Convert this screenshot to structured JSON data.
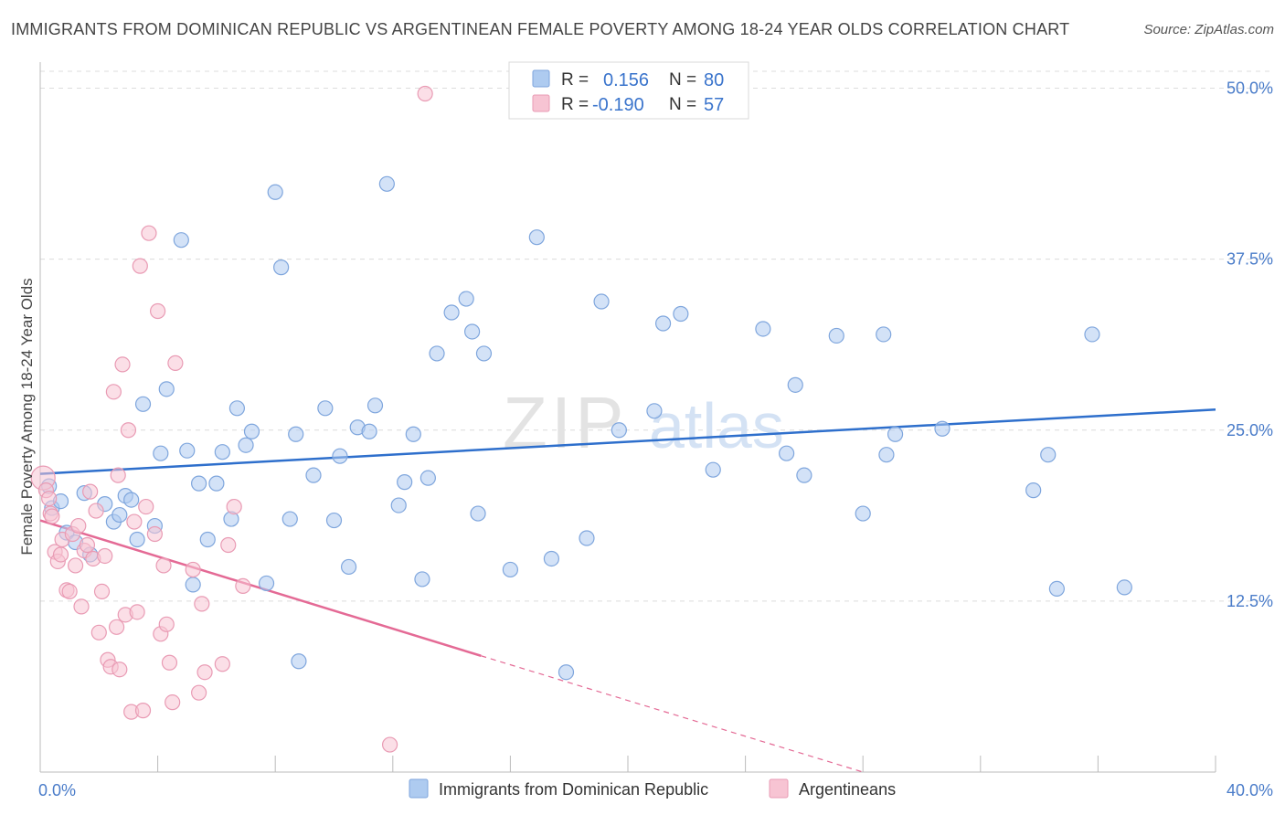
{
  "title": "IMMIGRANTS FROM DOMINICAN REPUBLIC VS ARGENTINEAN FEMALE POVERTY AMONG 18-24 YEAR OLDS CORRELATION CHART",
  "source": "Source: ZipAtlas.com",
  "watermark": "ZIPatlas",
  "colors": {
    "blue_fill": "#aecbf0",
    "blue_stroke": "#7fa6dd",
    "blue_line": "#2e6fcc",
    "pink_fill": "#f7c4d3",
    "pink_stroke": "#e99bb4",
    "pink_line": "#e46a95",
    "grid": "#dcdcdc",
    "tick_text": "#4a7cc9"
  },
  "legend_box": {
    "rows": [
      {
        "r_label": "R =",
        "r_value": "0.156",
        "n_label": "N =",
        "n_value": "80"
      },
      {
        "r_label": "R =",
        "r_value": "-0.190",
        "n_label": "N =",
        "n_value": "57"
      }
    ]
  },
  "chart_data": {
    "type": "scatter",
    "title": "IMMIGRANTS FROM DOMINICAN REPUBLIC VS ARGENTINEAN FEMALE POVERTY AMONG 18-24 YEAR OLDS CORRELATION CHART",
    "xlabel": "",
    "ylabel": "Female Poverty Among 18-24 Year Olds",
    "xlim": [
      0,
      40
    ],
    "ylim": [
      0,
      50
    ],
    "x_tick_labels": [
      "0.0%",
      "40.0%"
    ],
    "y_ticks": [
      12.5,
      25.0,
      37.5,
      50.0
    ],
    "y_tick_labels": [
      "12.5%",
      "25.0%",
      "37.5%",
      "50.0%"
    ],
    "grid": true,
    "legend_position": "bottom",
    "series": [
      {
        "name": "Immigrants from Dominican Republic",
        "color": "#aecbf0",
        "trend": {
          "x": [
            0,
            40
          ],
          "y": [
            21.8,
            26.5
          ]
        },
        "points": [
          [
            0.3,
            20.9
          ],
          [
            0.4,
            19.3
          ],
          [
            0.7,
            19.8
          ],
          [
            0.9,
            17.5
          ],
          [
            1.2,
            16.8
          ],
          [
            1.5,
            20.4
          ],
          [
            1.7,
            15.9
          ],
          [
            2.2,
            19.6
          ],
          [
            2.5,
            18.3
          ],
          [
            2.7,
            18.8
          ],
          [
            2.9,
            20.2
          ],
          [
            3.1,
            19.9
          ],
          [
            3.3,
            17.0
          ],
          [
            3.5,
            26.9
          ],
          [
            3.9,
            18.0
          ],
          [
            4.1,
            23.3
          ],
          [
            4.3,
            28.0
          ],
          [
            4.8,
            38.9
          ],
          [
            5.0,
            23.5
          ],
          [
            5.2,
            13.7
          ],
          [
            5.4,
            21.1
          ],
          [
            5.7,
            17.0
          ],
          [
            6.0,
            21.1
          ],
          [
            6.2,
            23.4
          ],
          [
            6.5,
            18.5
          ],
          [
            6.7,
            26.6
          ],
          [
            7.0,
            23.9
          ],
          [
            7.2,
            24.9
          ],
          [
            7.7,
            13.8
          ],
          [
            8.0,
            42.4
          ],
          [
            8.2,
            36.9
          ],
          [
            8.5,
            18.5
          ],
          [
            8.8,
            8.1
          ],
          [
            8.7,
            24.7
          ],
          [
            9.3,
            21.7
          ],
          [
            9.7,
            26.6
          ],
          [
            10.0,
            18.4
          ],
          [
            10.2,
            23.1
          ],
          [
            10.5,
            15.0
          ],
          [
            10.8,
            25.2
          ],
          [
            11.2,
            24.9
          ],
          [
            11.4,
            26.8
          ],
          [
            11.8,
            43.0
          ],
          [
            12.2,
            19.5
          ],
          [
            12.4,
            21.2
          ],
          [
            12.7,
            24.7
          ],
          [
            13.0,
            14.1
          ],
          [
            13.2,
            21.5
          ],
          [
            13.5,
            30.6
          ],
          [
            14.0,
            33.6
          ],
          [
            14.5,
            34.6
          ],
          [
            14.7,
            32.2
          ],
          [
            14.9,
            18.9
          ],
          [
            15.1,
            30.6
          ],
          [
            16.0,
            14.8
          ],
          [
            16.9,
            39.1
          ],
          [
            17.4,
            15.6
          ],
          [
            17.9,
            7.3
          ],
          [
            18.6,
            17.1
          ],
          [
            19.1,
            34.4
          ],
          [
            19.7,
            25.0
          ],
          [
            20.9,
            26.4
          ],
          [
            21.2,
            32.8
          ],
          [
            21.8,
            33.5
          ],
          [
            22.9,
            22.1
          ],
          [
            24.6,
            32.4
          ],
          [
            25.4,
            23.3
          ],
          [
            25.7,
            28.3
          ],
          [
            26.0,
            21.7
          ],
          [
            27.1,
            31.9
          ],
          [
            28.0,
            18.9
          ],
          [
            28.7,
            32.0
          ],
          [
            28.8,
            23.2
          ],
          [
            29.1,
            24.7
          ],
          [
            30.7,
            25.1
          ],
          [
            33.8,
            20.6
          ],
          [
            34.3,
            23.2
          ],
          [
            34.6,
            13.4
          ],
          [
            35.8,
            32.0
          ],
          [
            36.9,
            13.5
          ]
        ]
      },
      {
        "name": "Argentineans",
        "color": "#f7c4d3",
        "trend": {
          "x": [
            0,
            15.0
          ],
          "y": [
            18.4,
            8.5
          ]
        },
        "trend_extension": {
          "x": [
            15.0,
            28.0
          ],
          "y": [
            8.5,
            0.0
          ]
        },
        "points": [
          [
            0.1,
            21.5
          ],
          [
            0.2,
            20.6
          ],
          [
            0.3,
            20.0
          ],
          [
            0.35,
            18.9
          ],
          [
            0.4,
            18.7
          ],
          [
            0.5,
            16.1
          ],
          [
            0.6,
            15.4
          ],
          [
            0.7,
            15.9
          ],
          [
            0.75,
            17.0
          ],
          [
            0.9,
            13.3
          ],
          [
            1.0,
            13.2
          ],
          [
            1.1,
            17.4
          ],
          [
            1.2,
            15.1
          ],
          [
            1.3,
            18.0
          ],
          [
            1.4,
            12.1
          ],
          [
            1.5,
            16.2
          ],
          [
            1.6,
            16.6
          ],
          [
            1.7,
            20.5
          ],
          [
            1.8,
            15.6
          ],
          [
            1.9,
            19.1
          ],
          [
            2.0,
            10.2
          ],
          [
            2.1,
            13.2
          ],
          [
            2.2,
            15.8
          ],
          [
            2.3,
            8.2
          ],
          [
            2.4,
            7.7
          ],
          [
            2.5,
            27.8
          ],
          [
            2.6,
            10.6
          ],
          [
            2.65,
            21.7
          ],
          [
            2.7,
            7.5
          ],
          [
            2.8,
            29.8
          ],
          [
            2.9,
            11.5
          ],
          [
            3.0,
            25.0
          ],
          [
            3.1,
            4.4
          ],
          [
            3.2,
            18.3
          ],
          [
            3.3,
            11.7
          ],
          [
            3.4,
            37.0
          ],
          [
            3.5,
            4.5
          ],
          [
            3.6,
            19.4
          ],
          [
            3.7,
            39.4
          ],
          [
            3.9,
            17.4
          ],
          [
            4.0,
            33.7
          ],
          [
            4.1,
            10.1
          ],
          [
            4.2,
            15.1
          ],
          [
            4.3,
            10.8
          ],
          [
            4.4,
            8.0
          ],
          [
            4.5,
            5.1
          ],
          [
            4.6,
            29.9
          ],
          [
            5.2,
            14.8
          ],
          [
            5.4,
            5.8
          ],
          [
            5.5,
            12.3
          ],
          [
            5.6,
            7.3
          ],
          [
            6.2,
            7.9
          ],
          [
            6.4,
            16.6
          ],
          [
            6.6,
            19.4
          ],
          [
            6.9,
            13.6
          ],
          [
            11.9,
            2.0
          ],
          [
            13.1,
            49.6
          ]
        ]
      }
    ]
  },
  "bottom_legend": [
    {
      "label": "Immigrants from Dominican Republic",
      "color": "#aecbf0"
    },
    {
      "label": "Argentineans",
      "color": "#f7c4d3"
    }
  ]
}
